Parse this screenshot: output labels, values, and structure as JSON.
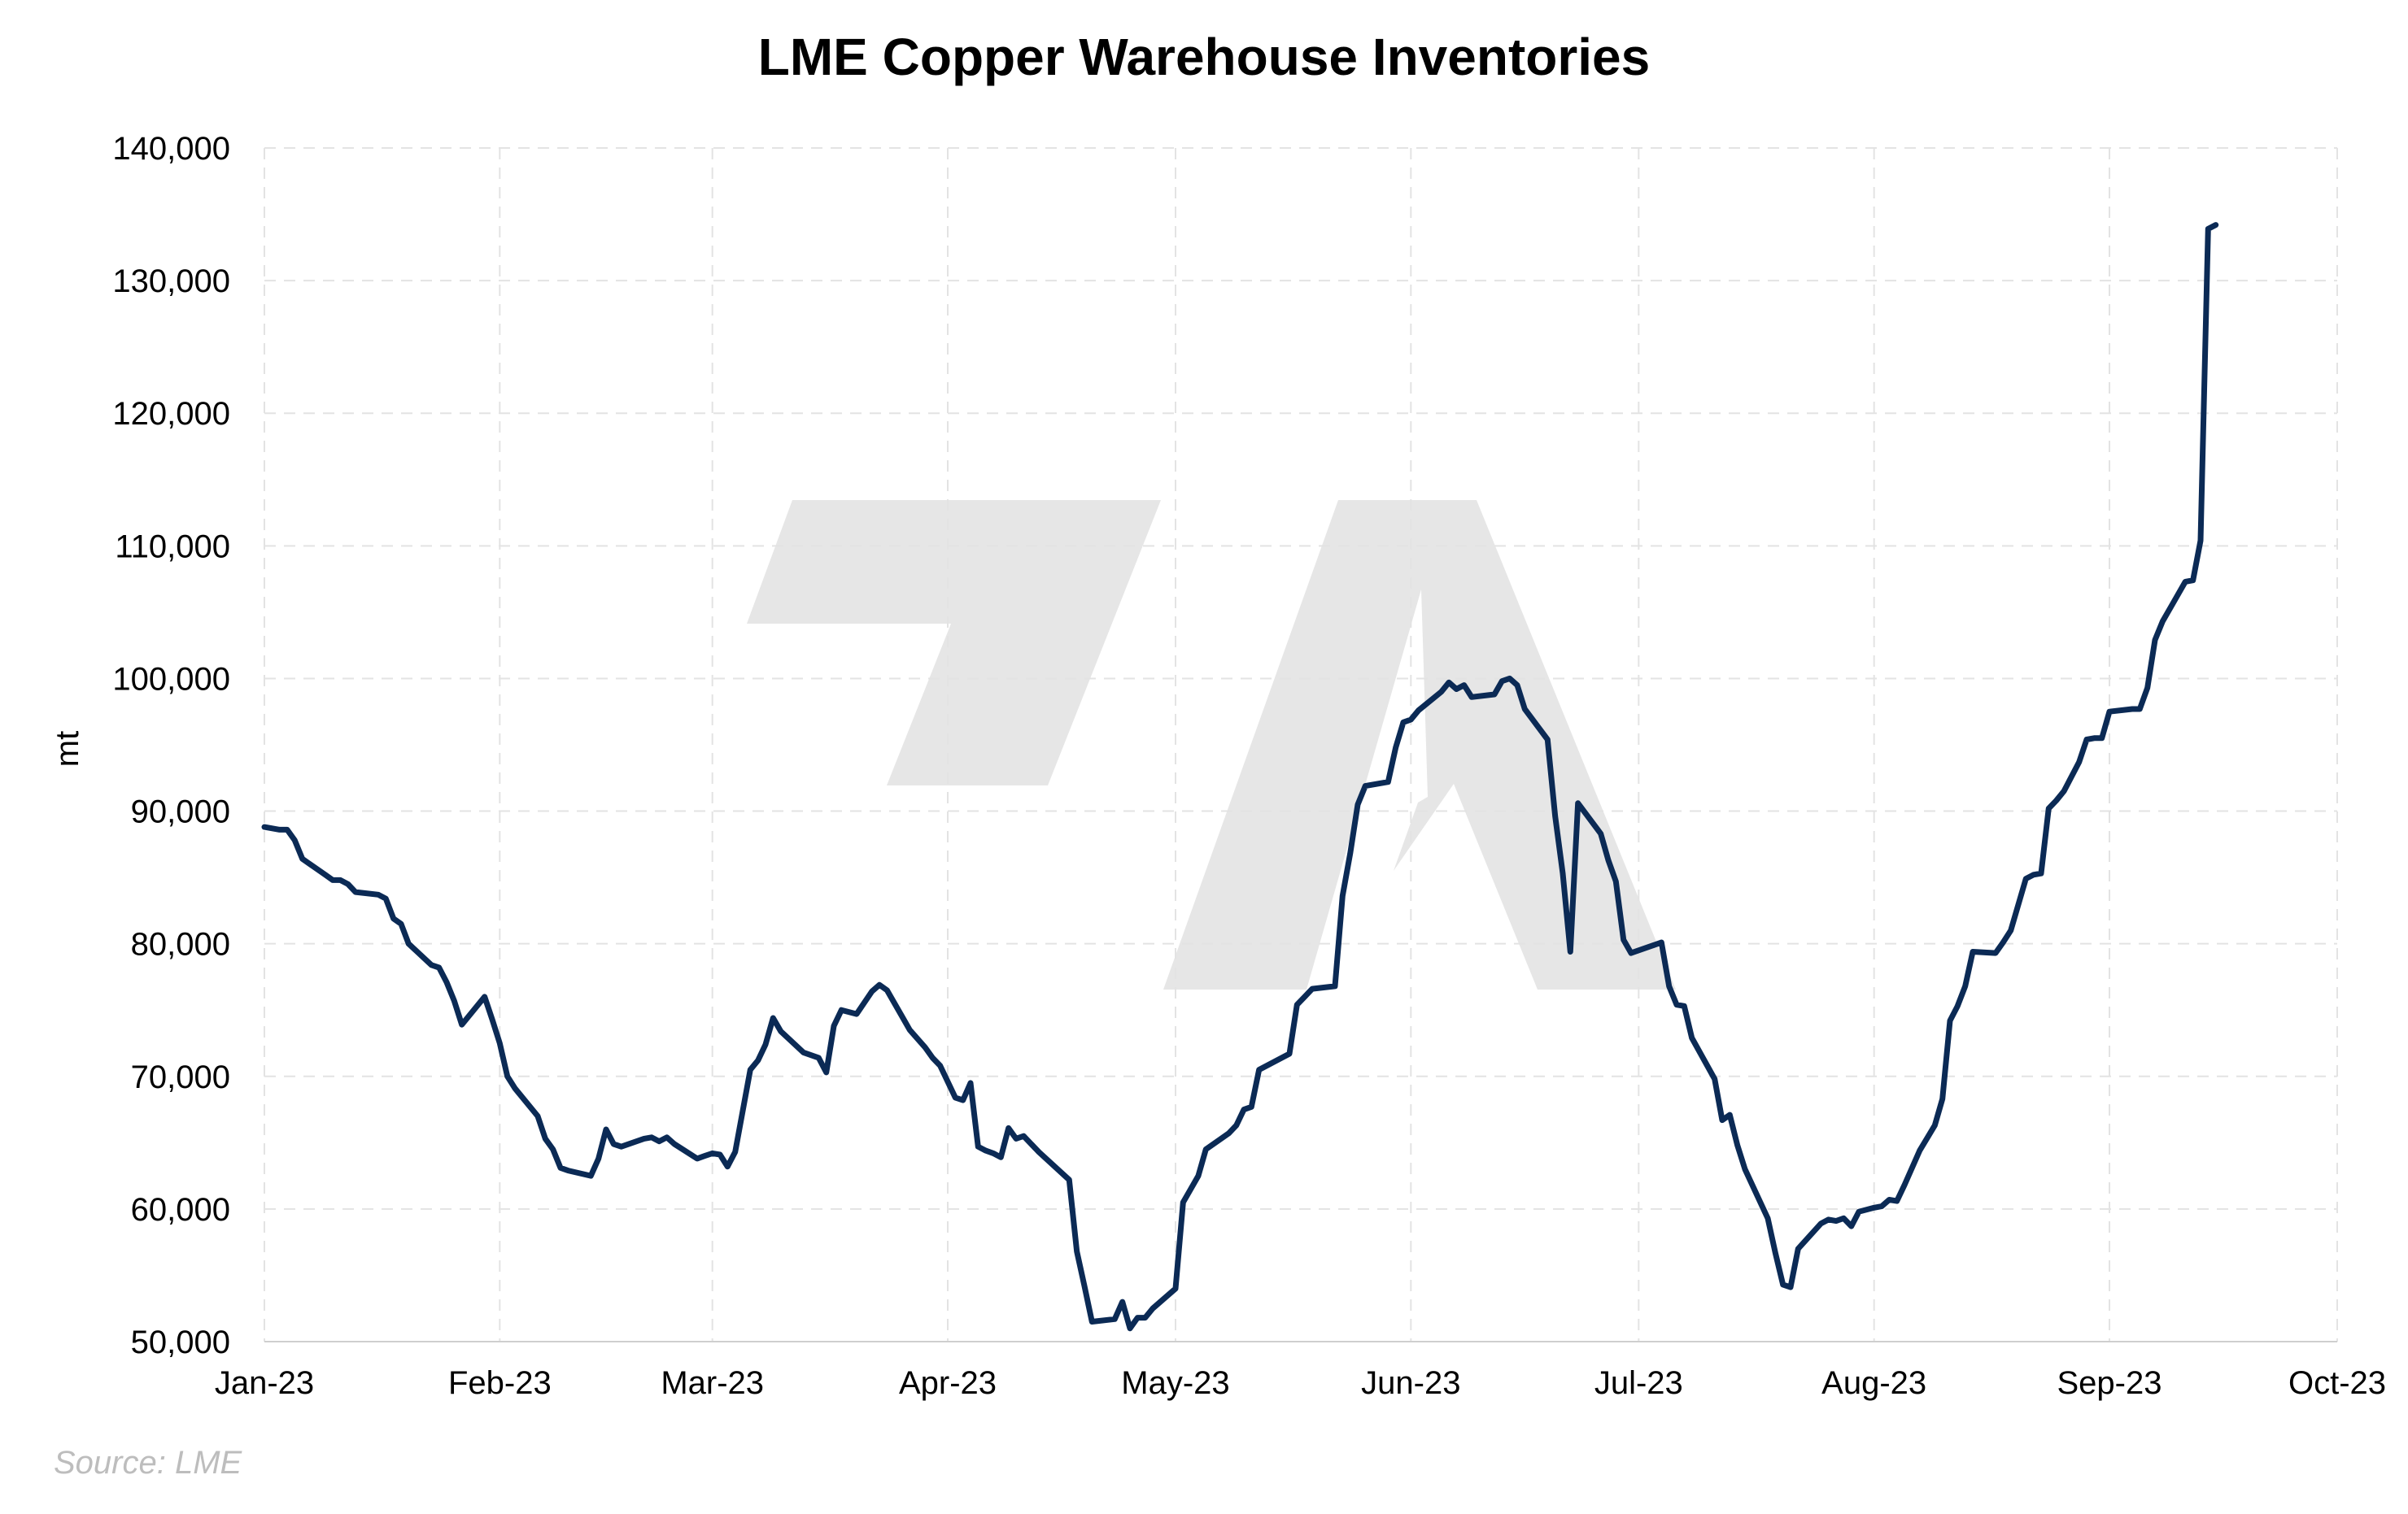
{
  "chart_data": {
    "type": "line",
    "title": "LME Copper Warehouse Inventories",
    "ylabel": "mt",
    "xlabel": "",
    "source": "Source: LME",
    "x_tick_labels": [
      "Jan-23",
      "Feb-23",
      "Mar-23",
      "Apr-23",
      "May-23",
      "Jun-23",
      "Jul-23",
      "Aug-23",
      "Sep-23",
      "Oct-23"
    ],
    "x_range": [
      "2023-01-01",
      "2023-10-01"
    ],
    "ylim": [
      50000,
      140000
    ],
    "y_ticks": [
      50000,
      60000,
      70000,
      80000,
      90000,
      100000,
      110000,
      120000,
      130000,
      140000
    ],
    "grid": true,
    "legend": "none",
    "colors": {
      "line": "#0b2a55",
      "grid": "#e3e3e3",
      "watermark": "#e6e6e6",
      "source": "#bdbdbd"
    },
    "series": [
      {
        "color": "#0b2a55",
        "points": [
          [
            "2023-01-01",
            88800
          ],
          [
            "2023-01-03",
            88600
          ],
          [
            "2023-01-04",
            88600
          ],
          [
            "2023-01-05",
            87800
          ],
          [
            "2023-01-06",
            86400
          ],
          [
            "2023-01-09",
            85200
          ],
          [
            "2023-01-10",
            84800
          ],
          [
            "2023-01-11",
            84800
          ],
          [
            "2023-01-12",
            84500
          ],
          [
            "2023-01-13",
            83900
          ],
          [
            "2023-01-16",
            83700
          ],
          [
            "2023-01-17",
            83400
          ],
          [
            "2023-01-18",
            81900
          ],
          [
            "2023-01-19",
            81500
          ],
          [
            "2023-01-20",
            80000
          ],
          [
            "2023-01-23",
            78400
          ],
          [
            "2023-01-24",
            78200
          ],
          [
            "2023-01-25",
            77100
          ],
          [
            "2023-01-26",
            75700
          ],
          [
            "2023-01-27",
            73900
          ],
          [
            "2023-01-30",
            76000
          ],
          [
            "2023-01-31",
            74300
          ],
          [
            "2023-02-01",
            72500
          ],
          [
            "2023-02-02",
            70000
          ],
          [
            "2023-02-03",
            69100
          ],
          [
            "2023-02-06",
            67000
          ],
          [
            "2023-02-07",
            65300
          ],
          [
            "2023-02-08",
            64500
          ],
          [
            "2023-02-09",
            63100
          ],
          [
            "2023-02-10",
            62900
          ],
          [
            "2023-02-13",
            62500
          ],
          [
            "2023-02-14",
            63800
          ],
          [
            "2023-02-15",
            66000
          ],
          [
            "2023-02-16",
            64900
          ],
          [
            "2023-02-17",
            64700
          ],
          [
            "2023-02-20",
            65300
          ],
          [
            "2023-02-21",
            65400
          ],
          [
            "2023-02-22",
            65100
          ],
          [
            "2023-02-23",
            65400
          ],
          [
            "2023-02-24",
            64900
          ],
          [
            "2023-02-27",
            63800
          ],
          [
            "2023-02-28",
            64000
          ],
          [
            "2023-03-01",
            64200
          ],
          [
            "2023-03-02",
            64100
          ],
          [
            "2023-03-03",
            63200
          ],
          [
            "2023-03-04",
            64300
          ],
          [
            "2023-03-06",
            70500
          ],
          [
            "2023-03-07",
            71200
          ],
          [
            "2023-03-08",
            72400
          ],
          [
            "2023-03-09",
            74400
          ],
          [
            "2023-03-10",
            73400
          ],
          [
            "2023-03-13",
            71800
          ],
          [
            "2023-03-14",
            71600
          ],
          [
            "2023-03-15",
            71400
          ],
          [
            "2023-03-16",
            70300
          ],
          [
            "2023-03-17",
            73800
          ],
          [
            "2023-03-18",
            75000
          ],
          [
            "2023-03-20",
            74700
          ],
          [
            "2023-03-22",
            76400
          ],
          [
            "2023-03-23",
            76900
          ],
          [
            "2023-03-24",
            76500
          ],
          [
            "2023-03-26",
            74500
          ],
          [
            "2023-03-27",
            73500
          ],
          [
            "2023-03-29",
            72200
          ],
          [
            "2023-03-30",
            71400
          ],
          [
            "2023-03-31",
            70800
          ],
          [
            "2023-04-02",
            68400
          ],
          [
            "2023-04-03",
            68200
          ],
          [
            "2023-04-04",
            69500
          ],
          [
            "2023-04-05",
            64700
          ],
          [
            "2023-04-06",
            64400
          ],
          [
            "2023-04-07",
            64200
          ],
          [
            "2023-04-08",
            63900
          ],
          [
            "2023-04-09",
            66100
          ],
          [
            "2023-04-10",
            65300
          ],
          [
            "2023-04-11",
            65500
          ],
          [
            "2023-04-13",
            64300
          ],
          [
            "2023-04-17",
            62200
          ],
          [
            "2023-04-18",
            56800
          ],
          [
            "2023-04-19",
            54200
          ],
          [
            "2023-04-20",
            51500
          ],
          [
            "2023-04-23",
            51700
          ],
          [
            "2023-04-24",
            53000
          ],
          [
            "2023-04-25",
            51000
          ],
          [
            "2023-04-26",
            51800
          ],
          [
            "2023-04-27",
            51800
          ],
          [
            "2023-04-28",
            52500
          ],
          [
            "2023-05-01",
            54000
          ],
          [
            "2023-05-02",
            60500
          ],
          [
            "2023-05-03",
            61500
          ],
          [
            "2023-05-04",
            62500
          ],
          [
            "2023-05-05",
            64500
          ],
          [
            "2023-05-08",
            65700
          ],
          [
            "2023-05-09",
            66300
          ],
          [
            "2023-05-10",
            67500
          ],
          [
            "2023-05-11",
            67700
          ],
          [
            "2023-05-12",
            70500
          ],
          [
            "2023-05-15",
            71400
          ],
          [
            "2023-05-16",
            71700
          ],
          [
            "2023-05-17",
            75400
          ],
          [
            "2023-05-18",
            76000
          ],
          [
            "2023-05-19",
            76600
          ],
          [
            "2023-05-22",
            76800
          ],
          [
            "2023-05-23",
            83600
          ],
          [
            "2023-05-24",
            86800
          ],
          [
            "2023-05-25",
            90500
          ],
          [
            "2023-05-26",
            91900
          ],
          [
            "2023-05-29",
            92200
          ],
          [
            "2023-05-30",
            94800
          ],
          [
            "2023-05-31",
            96700
          ],
          [
            "2023-06-01",
            96900
          ],
          [
            "2023-06-02",
            97600
          ],
          [
            "2023-06-05",
            99000
          ],
          [
            "2023-06-06",
            99700
          ],
          [
            "2023-06-07",
            99200
          ],
          [
            "2023-06-08",
            99500
          ],
          [
            "2023-06-09",
            98600
          ],
          [
            "2023-06-12",
            98800
          ],
          [
            "2023-06-13",
            99800
          ],
          [
            "2023-06-14",
            100000
          ],
          [
            "2023-06-15",
            99500
          ],
          [
            "2023-06-16",
            97700
          ],
          [
            "2023-06-19",
            95400
          ],
          [
            "2023-06-20",
            89600
          ],
          [
            "2023-06-21",
            85300
          ],
          [
            "2023-06-22",
            79400
          ],
          [
            "2023-06-23",
            90600
          ],
          [
            "2023-06-26",
            88300
          ],
          [
            "2023-06-27",
            86300
          ],
          [
            "2023-06-28",
            84700
          ],
          [
            "2023-06-29",
            80300
          ],
          [
            "2023-06-30",
            79300
          ],
          [
            "2023-07-03",
            79900
          ],
          [
            "2023-07-04",
            80100
          ],
          [
            "2023-07-05",
            76800
          ],
          [
            "2023-07-06",
            75400
          ],
          [
            "2023-07-07",
            75300
          ],
          [
            "2023-07-08",
            72900
          ],
          [
            "2023-07-11",
            69800
          ],
          [
            "2023-07-12",
            66700
          ],
          [
            "2023-07-13",
            67100
          ],
          [
            "2023-07-14",
            64800
          ],
          [
            "2023-07-15",
            63000
          ],
          [
            "2023-07-18",
            59300
          ],
          [
            "2023-07-19",
            56700
          ],
          [
            "2023-07-20",
            54300
          ],
          [
            "2023-07-21",
            54100
          ],
          [
            "2023-07-22",
            57000
          ],
          [
            "2023-07-25",
            58900
          ],
          [
            "2023-07-26",
            59200
          ],
          [
            "2023-07-27",
            59100
          ],
          [
            "2023-07-28",
            59300
          ],
          [
            "2023-07-29",
            58700
          ],
          [
            "2023-07-30",
            59800
          ],
          [
            "2023-08-01",
            60100
          ],
          [
            "2023-08-02",
            60200
          ],
          [
            "2023-08-03",
            60700
          ],
          [
            "2023-08-04",
            60600
          ],
          [
            "2023-08-05",
            61800
          ],
          [
            "2023-08-07",
            64400
          ],
          [
            "2023-08-09",
            66300
          ],
          [
            "2023-08-10",
            68300
          ],
          [
            "2023-08-11",
            74200
          ],
          [
            "2023-08-12",
            75300
          ],
          [
            "2023-08-13",
            76800
          ],
          [
            "2023-08-14",
            79400
          ],
          [
            "2023-08-17",
            79300
          ],
          [
            "2023-08-18",
            80100
          ],
          [
            "2023-08-19",
            81000
          ],
          [
            "2023-08-21",
            84900
          ],
          [
            "2023-08-22",
            85200
          ],
          [
            "2023-08-23",
            85300
          ],
          [
            "2023-08-24",
            90200
          ],
          [
            "2023-08-25",
            90800
          ],
          [
            "2023-08-26",
            91500
          ],
          [
            "2023-08-28",
            93700
          ],
          [
            "2023-08-29",
            95400
          ],
          [
            "2023-08-30",
            95500
          ],
          [
            "2023-08-31",
            95500
          ],
          [
            "2023-09-01",
            97500
          ],
          [
            "2023-09-04",
            97700
          ],
          [
            "2023-09-05",
            97700
          ],
          [
            "2023-09-06",
            99300
          ],
          [
            "2023-09-07",
            102900
          ],
          [
            "2023-09-08",
            104300
          ],
          [
            "2023-09-11",
            107300
          ],
          [
            "2023-09-12",
            107400
          ],
          [
            "2023-09-13",
            110400
          ],
          [
            "2023-09-14",
            133900
          ],
          [
            "2023-09-15",
            134200
          ]
        ]
      }
    ]
  }
}
